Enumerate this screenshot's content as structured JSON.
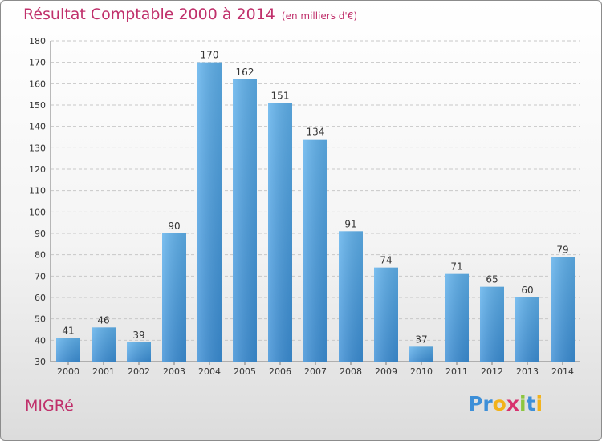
{
  "chart_data": {
    "type": "bar",
    "title": "Résultat Comptable 2000 à 2014",
    "subtitle": "(en milliers d'€)",
    "categories": [
      "2000",
      "2001",
      "2002",
      "2003",
      "2004",
      "2005",
      "2006",
      "2007",
      "2008",
      "2009",
      "2010",
      "2011",
      "2012",
      "2013",
      "2014"
    ],
    "values": [
      41,
      46,
      39,
      90,
      170,
      162,
      151,
      134,
      91,
      74,
      37,
      71,
      65,
      60,
      79
    ],
    "ylim": [
      30,
      180
    ],
    "yticks": [
      30,
      40,
      50,
      60,
      70,
      80,
      90,
      100,
      110,
      120,
      130,
      140,
      150,
      160,
      170,
      180
    ],
    "xlabel": "",
    "ylabel": "",
    "grid": "horizontal dashed",
    "bar_color": "#3c8fd6"
  },
  "place": "MIGRé",
  "logo": {
    "letters": [
      "P",
      "r",
      "o",
      "x",
      "i",
      "t",
      "i"
    ],
    "colors": [
      "#3d8fd8",
      "#3d8fd8",
      "#f2b21a",
      "#d8326e",
      "#8cc63f",
      "#3d8fd8",
      "#f2b21a"
    ]
  }
}
